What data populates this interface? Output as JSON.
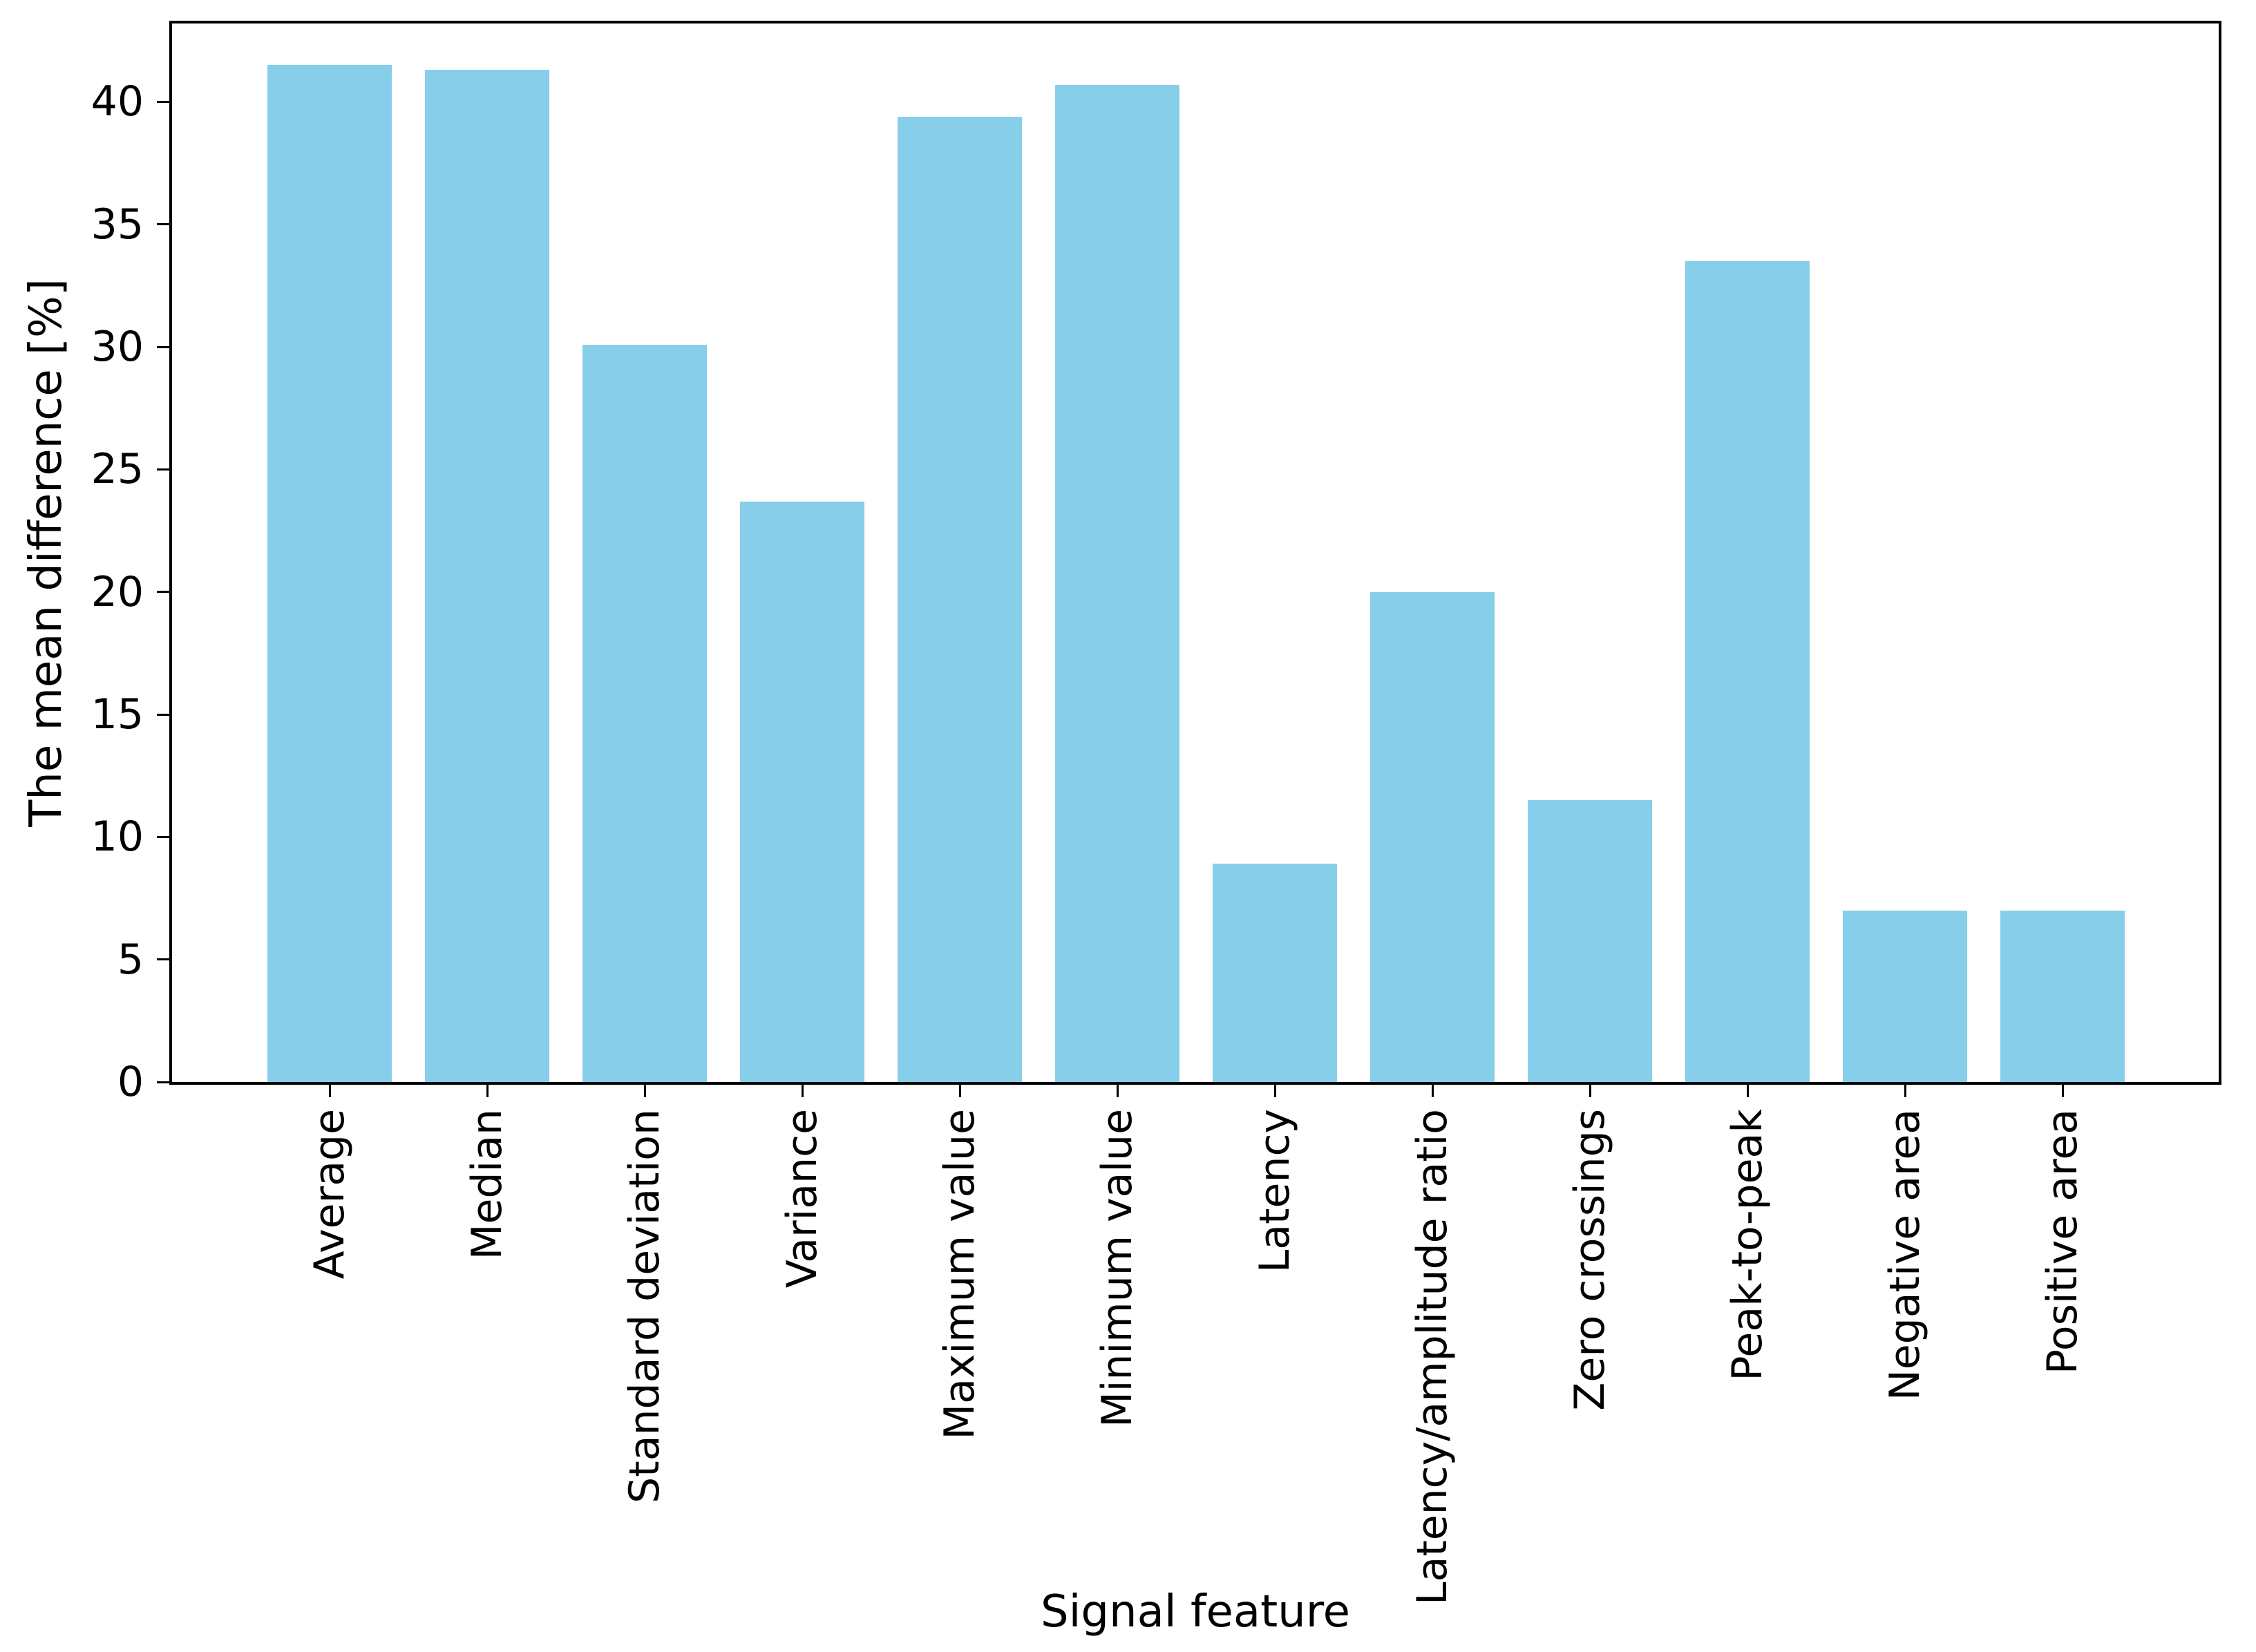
{
  "figure": {
    "background": "#ffffff",
    "axis_color": "#000000"
  },
  "chart_data": {
    "type": "bar",
    "title": "",
    "xlabel": "Signal feature",
    "ylabel": "The mean difference [%]",
    "categories": [
      "Average",
      "Median",
      "Standard deviation",
      "Variance",
      "Maximum value",
      "Minimum value",
      "Latency",
      "Latency/amplitude ratio",
      "Zero crossings",
      "Peak-to-peak",
      "Negative area",
      "Positive area"
    ],
    "values": [
      41.5,
      41.3,
      30.1,
      23.7,
      39.4,
      40.7,
      8.9,
      20.0,
      11.5,
      33.5,
      7.0,
      7.0
    ],
    "bar_color": "#87CEEB",
    "ylim": [
      0,
      43.2
    ],
    "yticks": [
      0,
      5,
      10,
      15,
      20,
      25,
      30,
      35,
      40
    ],
    "xtick_label_rotation": 90,
    "grid": false,
    "legend": "none"
  }
}
